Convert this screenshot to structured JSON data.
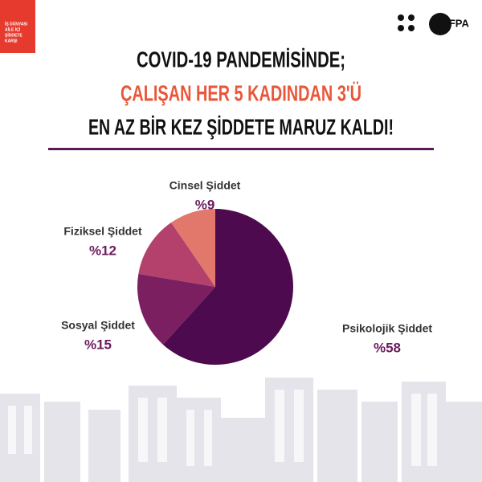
{
  "chart_data": {
    "type": "pie",
    "title_lines": [
      "COVID-19 PANDEMİSİNDE;",
      "ÇALIŞAN HER 5 KADINDAN 3'Ü",
      "EN AZ BİR KEZ ŞİDDETE MARUZ KALDI!"
    ],
    "categories": [
      "Psikolojik Şiddet",
      "Sosyal Şiddet",
      "Fiziksel Şiddet",
      "Cinsel Şiddet"
    ],
    "values": [
      58,
      15,
      12,
      9
    ],
    "value_labels": [
      "%58",
      "%15",
      "%12",
      "%9"
    ],
    "colors": [
      "#4d0a4f",
      "#7b1f60",
      "#b4416c",
      "#e1786b"
    ]
  },
  "logos": {
    "left": [
      "İŞ DÜNYASI",
      "AİLE İÇİ",
      "ŞİDDETE",
      "KARŞI"
    ],
    "right": "UNFPA"
  }
}
